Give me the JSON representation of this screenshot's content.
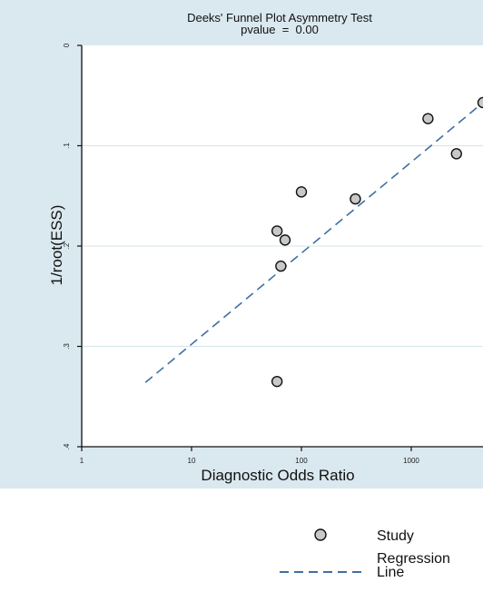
{
  "chart_data": {
    "type": "scatter",
    "title": "Deeks' Funnel Plot Asymmetry Test",
    "subtitle": "pvalue  =  0.00",
    "xlabel": "Diagnostic Odds Ratio",
    "ylabel": "1/root(ESS)",
    "x_scale": "log",
    "xlim": [
      1,
      4500
    ],
    "ylim": [
      0.4,
      0
    ],
    "x_ticks": [
      1,
      10,
      100,
      1000
    ],
    "x_tick_labels": [
      "1",
      "10",
      "100",
      "1000"
    ],
    "y_ticks": [
      0,
      0.1,
      0.2,
      0.3,
      0.4
    ],
    "y_tick_labels": [
      "0",
      ".1",
      ".2",
      ".3",
      ".4"
    ],
    "grid": "horizontal",
    "series": [
      {
        "name": "Study",
        "marker": "circle",
        "color": "#c8c8c8",
        "points": [
          {
            "x": 60,
            "y": 0.185
          },
          {
            "x": 71,
            "y": 0.194
          },
          {
            "x": 65,
            "y": 0.22
          },
          {
            "x": 100,
            "y": 0.146
          },
          {
            "x": 60,
            "y": 0.335
          },
          {
            "x": 310,
            "y": 0.153
          },
          {
            "x": 1420,
            "y": 0.073
          },
          {
            "x": 2580,
            "y": 0.108
          },
          {
            "x": 4500,
            "y": 0.057
          }
        ]
      },
      {
        "name": "Regression Line",
        "line_style": "dashed",
        "color": "#3f6fa3",
        "points": [
          {
            "x": 3.8,
            "y": 0.336
          },
          {
            "x": 4500,
            "y": 0.057
          }
        ]
      }
    ],
    "legend": {
      "placement": "bottom-right",
      "items": [
        {
          "label": "Study",
          "symbol": "circle"
        },
        {
          "label_lines": [
            "Regression",
            "Line"
          ],
          "symbol": "dashed-line"
        }
      ]
    }
  },
  "colors": {
    "panel_background": "#dae8ef",
    "plot_background": "#ffffff",
    "grid": "#d4e5ea",
    "marker_fill": "#c8c8c8",
    "regression_line": "#3f6fa3"
  }
}
